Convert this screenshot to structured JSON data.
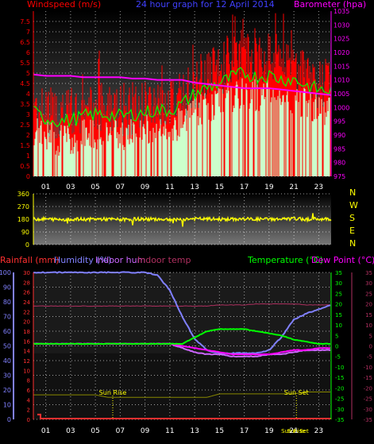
{
  "header": {
    "left_label": "Windspeed (m/s)",
    "center_label": "24 hour graph for   12 April 2014",
    "right_label": "Barometer (hpa)"
  },
  "colors": {
    "wind_gust": "#ff0000",
    "wind_avg": "#00ff00",
    "wind_fill": "#ccffcc",
    "barometer": "#ff00ff",
    "direction": "#ffff00",
    "rain": "#ff3030",
    "humidity": "#8080ff",
    "indoor_hum": "#cc66ff",
    "indoor_temp": "#b03060",
    "temperature": "#00ff00",
    "dew_point": "#ff00ff",
    "sun": "#888800"
  },
  "time_ticks": [
    "01",
    "03",
    "05",
    "07",
    "09",
    "11",
    "13",
    "15",
    "17",
    "19",
    "21",
    "23"
  ],
  "chart_data": [
    {
      "type": "area",
      "name": "wind_and_barometer",
      "x_hours": [
        0,
        1,
        2,
        3,
        4,
        5,
        6,
        7,
        8,
        9,
        10,
        11,
        12,
        13,
        14,
        15,
        16,
        17,
        18,
        19,
        20,
        21,
        22,
        23,
        24
      ],
      "left_axis": {
        "label": "Windspeed (m/s)",
        "ticks": [
          "0",
          "0.5",
          "1",
          "1.5",
          "2",
          "2.5",
          "3",
          "3.5",
          "4",
          "4.5",
          "5",
          "5.5",
          "6",
          "6.5",
          "7",
          "7.5"
        ],
        "range": [
          0,
          8
        ]
      },
      "right_axis": {
        "label": "Barometer (hpa)",
        "ticks": [
          "975",
          "980",
          "985",
          "990",
          "995",
          "1000",
          "1005",
          "1010",
          "1015",
          "1020",
          "1025",
          "1030",
          "1035"
        ],
        "range": [
          975,
          1035
        ]
      },
      "series": [
        {
          "name": "gust",
          "values": [
            3.4,
            3.2,
            3.0,
            2.9,
            3.1,
            3.3,
            3.4,
            3.2,
            3.3,
            3.5,
            3.6,
            3.4,
            3.8,
            4.4,
            4.9,
            5.1,
            5.6,
            5.9,
            5.6,
            5.8,
            5.5,
            5.3,
            4.7,
            4.5,
            4.3
          ]
        },
        {
          "name": "average",
          "values": [
            2.2,
            1.9,
            1.8,
            1.8,
            2.0,
            2.1,
            2.1,
            2.0,
            2.1,
            2.2,
            2.3,
            2.3,
            2.6,
            3.1,
            3.4,
            3.6,
            3.9,
            4.1,
            3.9,
            4.0,
            3.8,
            3.8,
            3.5,
            3.3,
            3.2
          ]
        },
        {
          "name": "barometer",
          "values": [
            1012,
            1011.5,
            1011.5,
            1011.5,
            1011,
            1011,
            1011,
            1011,
            1010.5,
            1010.5,
            1010,
            1010,
            1010,
            1009,
            1008.5,
            1008,
            1007.5,
            1007,
            1007,
            1007,
            1006.5,
            1006,
            1005.5,
            1005,
            1004.5
          ]
        }
      ]
    },
    {
      "type": "scatter",
      "name": "wind_direction",
      "axis": {
        "ticks": [
          "0",
          "90",
          "180",
          "270",
          "360"
        ],
        "range": [
          0,
          360
        ]
      },
      "compass": [
        "N",
        "W",
        "S",
        "E",
        "N"
      ],
      "series": [
        {
          "name": "direction",
          "values": [
            180,
            182,
            178,
            180,
            179,
            181,
            180,
            177,
            182,
            180,
            181,
            179,
            180,
            183,
            181,
            180,
            179,
            182,
            180,
            181,
            180,
            183,
            180,
            181,
            182
          ]
        }
      ]
    },
    {
      "type": "line",
      "name": "temperature_humidity_rain",
      "labels": {
        "rainfall": "Rainfall (mm)",
        "humidity": "Humidity (%)",
        "indoor_hum": "Indoor hum",
        "indoor_temp": "Indoor temp",
        "temperature": "Temperature (°C)",
        "dew_point": "Dew Point (°C)"
      },
      "left_outer_axis": {
        "ticks": [
          "0",
          "10",
          "20",
          "30",
          "40",
          "50",
          "60",
          "70",
          "80",
          "90",
          "100"
        ],
        "range": [
          0,
          100
        ]
      },
      "left_inner_axis": {
        "ticks": [
          "0",
          "2",
          "4",
          "6",
          "8",
          "10",
          "12",
          "14",
          "16",
          "18",
          "20",
          "22",
          "24",
          "26",
          "28",
          "30"
        ],
        "range": [
          0,
          30
        ]
      },
      "right_inner_axis": {
        "ticks": [
          "-35",
          "-30",
          "-25",
          "-20",
          "-15",
          "-10",
          "-5",
          "0",
          "5",
          "10",
          "15",
          "20",
          "25",
          "30",
          "35"
        ],
        "range": [
          -35,
          35
        ]
      },
      "right_outer_axis": {
        "ticks": [
          "-35",
          "-30",
          "-25",
          "-20",
          "-15",
          "-10",
          "-5",
          "0",
          "5",
          "10",
          "15",
          "20",
          "25",
          "30",
          "35"
        ],
        "range": [
          -35,
          35
        ]
      },
      "x_hours": [
        0,
        1,
        2,
        3,
        4,
        5,
        6,
        7,
        8,
        9,
        10,
        11,
        12,
        13,
        14,
        15,
        16,
        17,
        18,
        19,
        20,
        21,
        22,
        23,
        24
      ],
      "series": [
        {
          "name": "humidity",
          "values": [
            100,
            100,
            100,
            100,
            100,
            100,
            100,
            100,
            100,
            100,
            98,
            88,
            70,
            55,
            47,
            45,
            45,
            45,
            45,
            47,
            56,
            68,
            72,
            75,
            78
          ]
        },
        {
          "name": "indoor_temp",
          "values": [
            19,
            19,
            19,
            19,
            19,
            19,
            19,
            19,
            19,
            19,
            19,
            19,
            19,
            19,
            19,
            19.5,
            19.5,
            19.5,
            20,
            20,
            20,
            20,
            19.5,
            19.5,
            19.5
          ]
        },
        {
          "name": "temperature",
          "values": [
            1,
            1,
            1,
            1,
            1,
            1,
            1,
            1,
            1,
            1,
            1,
            1,
            1,
            4,
            7,
            8,
            8,
            8,
            7,
            6,
            5,
            3,
            2,
            1,
            1
          ]
        },
        {
          "name": "dew_point",
          "values": [
            1,
            1,
            1,
            1,
            1,
            1,
            1,
            1,
            1,
            1,
            1,
            1,
            0,
            -1,
            -2,
            -3,
            -4,
            -4,
            -4,
            -4,
            -3,
            -2,
            -2,
            -1,
            -1
          ]
        },
        {
          "name": "indoor_hum",
          "values": [
            1,
            1,
            1,
            1,
            1,
            1,
            1,
            1,
            1,
            1,
            1,
            1,
            -1,
            -3,
            -4,
            -4,
            -5,
            -5,
            -5,
            -4,
            -4,
            -3,
            -2,
            -2,
            -2
          ]
        },
        {
          "name": "rainfall",
          "values": [
            1,
            0,
            0,
            0,
            0,
            0,
            0,
            0,
            0,
            0,
            0,
            0,
            0,
            0,
            0,
            0,
            0,
            0,
            0,
            0,
            0,
            0,
            0,
            0,
            0
          ]
        },
        {
          "name": "sun",
          "values": [
            5,
            5,
            5,
            5,
            5,
            5,
            4.5,
            4.5,
            4.5,
            4.5,
            4.5,
            4.5,
            4.5,
            4.5,
            4.5,
            5.2,
            5.2,
            5.2,
            5.2,
            5.2,
            5.2,
            5.2,
            5.6,
            5.6,
            5.6
          ]
        }
      ],
      "annotations": {
        "sunrise": "Sun Rise",
        "sunset": "Sun Set",
        "sun_bottom_1": "Sun Rise",
        "sun_bottom_2": "Sun Set"
      }
    }
  ]
}
